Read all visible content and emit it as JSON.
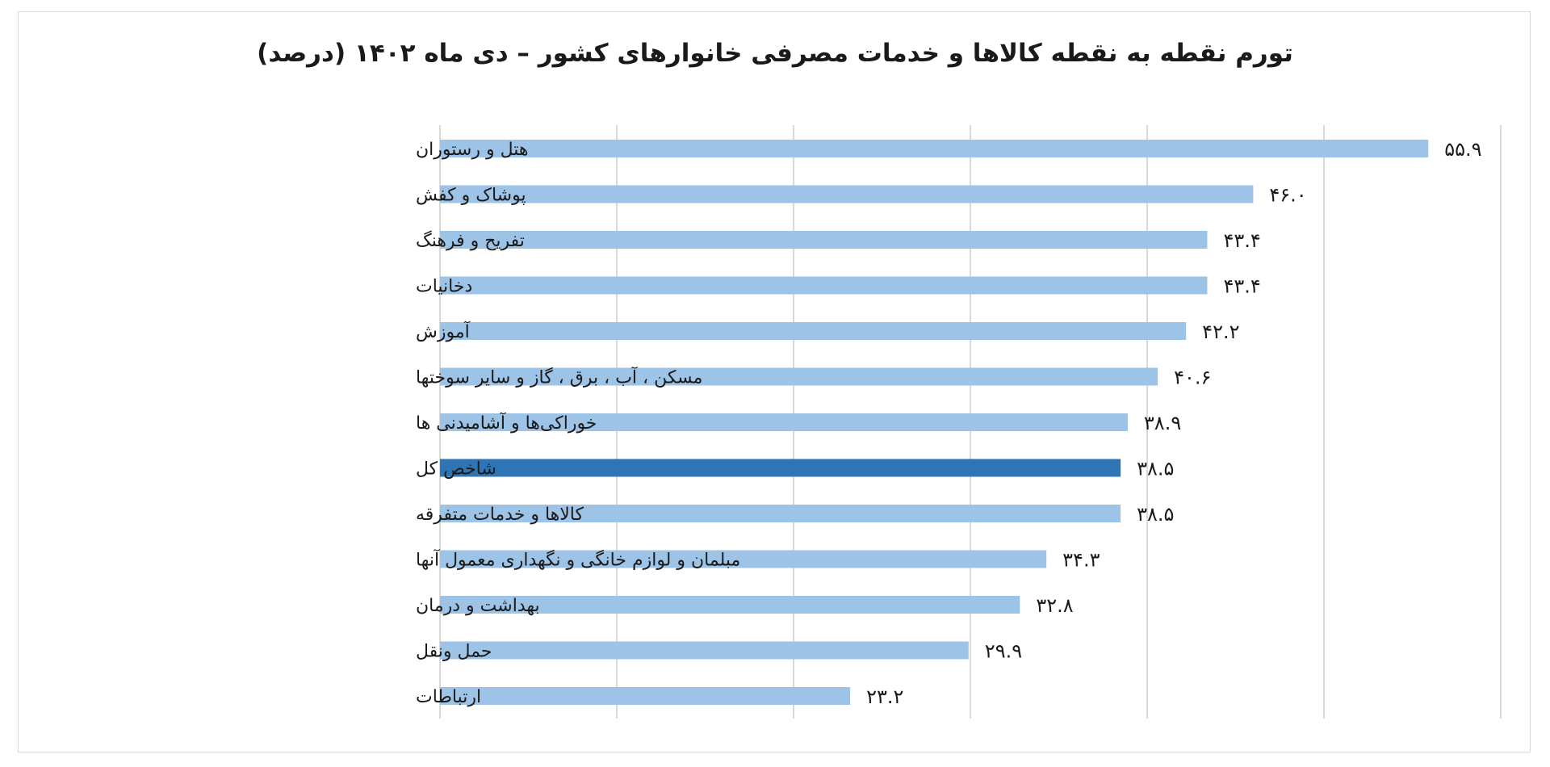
{
  "chart_data": {
    "type": "bar",
    "orientation": "horizontal",
    "title": "تورم نقطه به نقطه کالاها و خدمات مصرفی خانوارهای کشور – دی ماه ۱۴۰۲ (درصد)",
    "categories": [
      "هتل و رستوران",
      "پوشاک و کفش",
      "تفریح و فرهنگ",
      "دخانیات",
      "آموزش",
      "مسکن ، آب ، برق ، گاز و سایر سوختها",
      "خوراکی‌ها و آشامیدنی ها",
      "شاخص کل",
      "کالاها و خدمات متفرقه",
      "مبلمان و لوازم خانگی و نگهداری معمول آنها",
      "بهداشت و درمان",
      "حمل ونقل",
      "ارتباطات"
    ],
    "values": [
      55.9,
      46.0,
      43.4,
      43.4,
      42.2,
      40.6,
      38.9,
      38.5,
      38.5,
      34.3,
      32.8,
      29.9,
      23.2
    ],
    "value_labels": [
      "۵۵.۹",
      "۴۶.۰",
      "۴۳.۴",
      "۴۳.۴",
      "۴۲.۲",
      "۴۰.۶",
      "۳۸.۹",
      "۳۸.۵",
      "۳۸.۵",
      "۳۴.۳",
      "۳۲.۸",
      "۲۹.۹",
      "۲۳.۲"
    ],
    "highlight_index": 7,
    "xlim": [
      0,
      60
    ],
    "grid": true,
    "legend": "none",
    "colors": {
      "bar": "#9dc3e6",
      "highlight": "#2e75b6",
      "grid": "#d9d9d9"
    }
  }
}
